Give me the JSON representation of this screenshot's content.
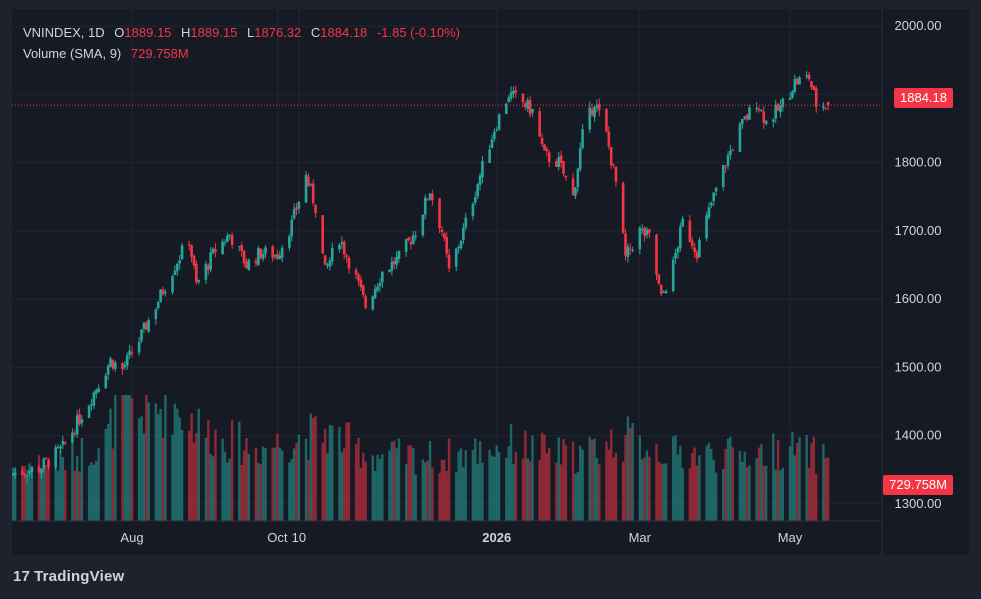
{
  "legend": {
    "symbol": "VNINDEX",
    "interval": "1D",
    "open_label": "O",
    "open": "1889.15",
    "high_label": "H",
    "high": "1889.15",
    "low_label": "L",
    "low": "1876.32",
    "close_label": "C",
    "close": "1884.18",
    "change": "-1.85 (-0.10%)",
    "volume_label": "Volume (SMA, 9)",
    "volume_value": "729.758M"
  },
  "price_tag": "1884.18",
  "volume_tag": "729.758M",
  "brand": {
    "logo_glyph": "17",
    "name": "TradingView"
  },
  "colors": {
    "up": "#26a69a",
    "down": "#f23645",
    "background": "#161a25",
    "frame": "#1e222d",
    "text": "#d1d4dc",
    "grid": "#232632"
  },
  "chart_data": {
    "type": "candlestick",
    "title": "",
    "symbol": "VNINDEX",
    "interval": "1D",
    "ylim": [
      1275,
      2025
    ],
    "y_ticks": [
      "1300.00",
      "1400.00",
      "1500.00",
      "1600.00",
      "1700.00",
      "1800.00",
      "1900.00",
      "2000.00"
    ],
    "x_ticks": [
      {
        "label": "Aug",
        "date": "2025-08-01",
        "bold": false
      },
      {
        "label": "Oct",
        "date": "2025-10-01",
        "bold": false
      },
      {
        "label": "10",
        "date": "2025-10-10",
        "bold": false
      },
      {
        "label": "2026",
        "date": "2026-01-01",
        "bold": true
      },
      {
        "label": "Mar",
        "date": "2026-03-02",
        "bold": false
      },
      {
        "label": "May",
        "date": "2026-05-04",
        "bold": false
      }
    ],
    "last_close": 1884.18,
    "grid": true,
    "volume_sma_period": 9,
    "series": [
      {
        "name": "Price",
        "points": [
          {
            "date": "2025-06-12",
            "close": 1345
          },
          {
            "date": "2025-06-23",
            "close": 1352
          },
          {
            "date": "2025-07-03",
            "close": 1382
          },
          {
            "date": "2025-07-14",
            "close": 1450
          },
          {
            "date": "2025-07-23",
            "close": 1510
          },
          {
            "date": "2025-07-28",
            "close": 1497
          },
          {
            "date": "2025-08-04",
            "close": 1540
          },
          {
            "date": "2025-08-12",
            "close": 1598
          },
          {
            "date": "2025-08-19",
            "close": 1650
          },
          {
            "date": "2025-08-25",
            "close": 1688
          },
          {
            "date": "2025-08-28",
            "close": 1620
          },
          {
            "date": "2025-09-05",
            "close": 1672
          },
          {
            "date": "2025-09-11",
            "close": 1695
          },
          {
            "date": "2025-09-18",
            "close": 1650
          },
          {
            "date": "2025-09-24",
            "close": 1668
          },
          {
            "date": "2025-10-01",
            "close": 1665
          },
          {
            "date": "2025-10-07",
            "close": 1710
          },
          {
            "date": "2025-10-13",
            "close": 1780
          },
          {
            "date": "2025-10-17",
            "close": 1735
          },
          {
            "date": "2025-10-21",
            "close": 1640
          },
          {
            "date": "2025-10-27",
            "close": 1690
          },
          {
            "date": "2025-11-03",
            "close": 1630
          },
          {
            "date": "2025-11-07",
            "close": 1590
          },
          {
            "date": "2025-11-14",
            "close": 1640
          },
          {
            "date": "2025-11-21",
            "close": 1660
          },
          {
            "date": "2025-11-28",
            "close": 1700
          },
          {
            "date": "2025-12-04",
            "close": 1760
          },
          {
            "date": "2025-12-09",
            "close": 1700
          },
          {
            "date": "2025-12-12",
            "close": 1640
          },
          {
            "date": "2025-12-18",
            "close": 1700
          },
          {
            "date": "2025-12-24",
            "close": 1770
          },
          {
            "date": "2025-12-31",
            "close": 1850
          },
          {
            "date": "2026-01-06",
            "close": 1900
          },
          {
            "date": "2026-01-12",
            "close": 1888
          },
          {
            "date": "2026-01-16",
            "close": 1875
          },
          {
            "date": "2026-01-21",
            "close": 1810
          },
          {
            "date": "2026-01-27",
            "close": 1800
          },
          {
            "date": "2026-02-02",
            "close": 1750
          },
          {
            "date": "2026-02-06",
            "close": 1840
          },
          {
            "date": "2026-02-11",
            "close": 1890
          },
          {
            "date": "2026-02-16",
            "close": 1840
          },
          {
            "date": "2026-02-20",
            "close": 1770
          },
          {
            "date": "2026-02-24",
            "close": 1660
          },
          {
            "date": "2026-03-02",
            "close": 1700
          },
          {
            "date": "2026-03-06",
            "close": 1690
          },
          {
            "date": "2026-03-11",
            "close": 1600
          },
          {
            "date": "2026-03-16",
            "close": 1650
          },
          {
            "date": "2026-03-20",
            "close": 1712
          },
          {
            "date": "2026-03-26",
            "close": 1670
          },
          {
            "date": "2026-04-01",
            "close": 1740
          },
          {
            "date": "2026-04-07",
            "close": 1800
          },
          {
            "date": "2026-04-13",
            "close": 1850
          },
          {
            "date": "2026-04-20",
            "close": 1890
          },
          {
            "date": "2026-04-24",
            "close": 1860
          },
          {
            "date": "2026-04-30",
            "close": 1880
          },
          {
            "date": "2026-05-06",
            "close": 1918
          },
          {
            "date": "2026-05-12",
            "close": 1925
          },
          {
            "date": "2026-05-15",
            "close": 1885
          },
          {
            "date": "2026-05-20",
            "close": 1884.18
          }
        ]
      },
      {
        "name": "Volume",
        "points": [
          {
            "date": "2025-06-15",
            "volume": 650
          },
          {
            "date": "2025-07-03",
            "volume": 700
          },
          {
            "date": "2025-07-21",
            "volume": 950
          },
          {
            "date": "2025-07-28",
            "volume": 1450
          },
          {
            "date": "2025-08-04",
            "volume": 1250
          },
          {
            "date": "2025-08-18",
            "volume": 1380
          },
          {
            "date": "2025-09-01",
            "volume": 1050
          },
          {
            "date": "2025-09-22",
            "volume": 850
          },
          {
            "date": "2025-10-13",
            "volume": 1000
          },
          {
            "date": "2025-10-21",
            "volume": 1050
          },
          {
            "date": "2025-11-10",
            "volume": 780
          },
          {
            "date": "2025-12-08",
            "volume": 750
          },
          {
            "date": "2026-01-07",
            "volume": 900
          },
          {
            "date": "2026-02-02",
            "volume": 760
          },
          {
            "date": "2026-02-24",
            "volume": 980
          },
          {
            "date": "2026-03-16",
            "volume": 800
          },
          {
            "date": "2026-04-13",
            "volume": 780
          },
          {
            "date": "2026-05-06",
            "volume": 850
          },
          {
            "date": "2026-05-20",
            "volume": 729.758
          }
        ]
      }
    ]
  }
}
